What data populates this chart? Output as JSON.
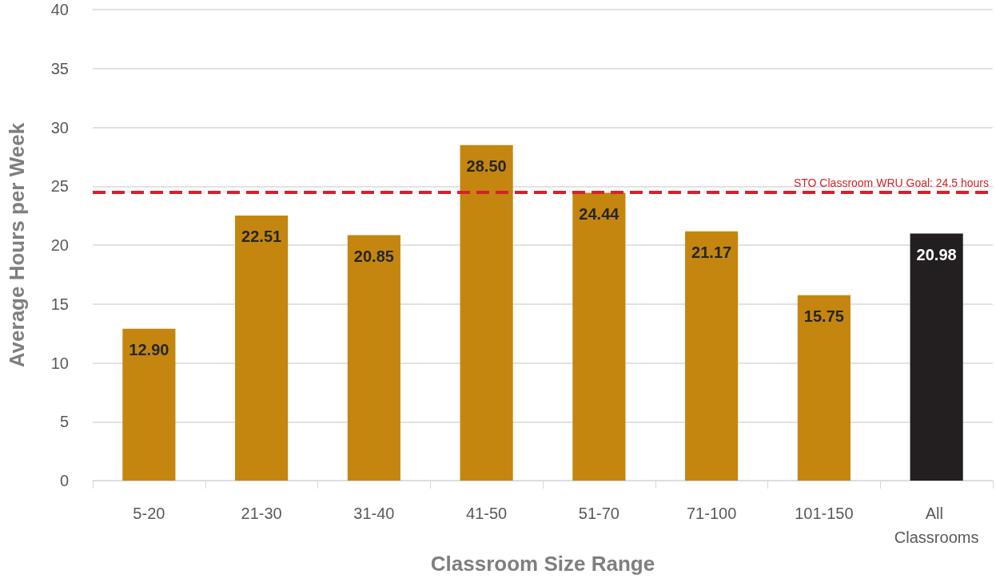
{
  "chart_data": {
    "type": "bar",
    "xlabel": "Classroom Size Range",
    "ylabel": "Average Hours per Week",
    "categories": [
      "5-20",
      "21-30",
      "31-40",
      "41-50",
      "51-70",
      "71-100",
      "101-150",
      "All Classrooms"
    ],
    "values": [
      12.9,
      22.51,
      20.85,
      28.5,
      24.44,
      21.17,
      15.75,
      20.98
    ],
    "colors": [
      "#c4860f",
      "#c4860f",
      "#c4860f",
      "#c4860f",
      "#c4860f",
      "#c4860f",
      "#c4860f",
      "#231f20"
    ],
    "ylim": [
      0,
      40
    ],
    "yticks": [
      0,
      5,
      10,
      15,
      20,
      25,
      30,
      35,
      40
    ],
    "grid": "y",
    "value_labels": [
      "12.90",
      "22.51",
      "20.85",
      "28.50",
      "24.44",
      "21.17",
      "15.75",
      "20.98"
    ],
    "ref_lines": [
      {
        "axis": "y",
        "value": 24.5,
        "label": "STO Classroom WRU Goal: 24.5 hours",
        "color": "#d2232a",
        "line_style": "dashed"
      }
    ]
  }
}
